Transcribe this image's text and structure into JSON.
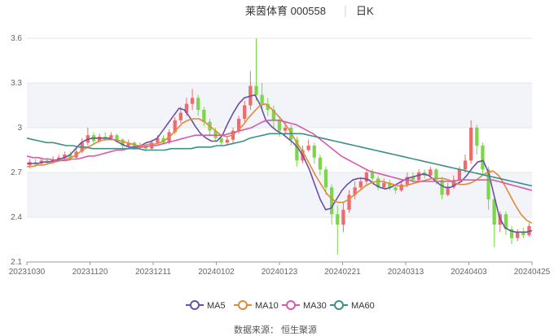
{
  "chart_data": {
    "type": "candlestick",
    "title": "莱茵体育 000558",
    "period_label": "日K",
    "ylim": [
      2.1,
      3.6
    ],
    "yticks": [
      2.1,
      2.4,
      2.7,
      3,
      3.3,
      3.6
    ],
    "ytick_labels": [
      "2.1",
      "2.4",
      "2.7",
      "3",
      "3.3",
      "3.6"
    ],
    "xtick_labels": [
      "20231030",
      "20231120",
      "20231211",
      "20240102",
      "20240123",
      "20240221",
      "20240313",
      "20240403",
      "20240425"
    ],
    "grid": true,
    "legend_position": "bottom",
    "series": [
      {
        "name": "MA5",
        "color": "#6b4fa8",
        "values": [
          2.76,
          2.76,
          2.76,
          2.77,
          2.77,
          2.78,
          2.79,
          2.8,
          2.82,
          2.86,
          2.9,
          2.92,
          2.93,
          2.93,
          2.93,
          2.93,
          2.92,
          2.9,
          2.88,
          2.87,
          2.87,
          2.88,
          2.9,
          2.91,
          2.93,
          2.98,
          3.03,
          3.08,
          3.13,
          3.12,
          3.07,
          3.01,
          2.96,
          2.93,
          2.91,
          2.91,
          2.95,
          3.03,
          3.1,
          3.16,
          3.2,
          3.21,
          3.22,
          3.15,
          3.05,
          3.01,
          2.98,
          2.96,
          2.93,
          2.9,
          2.86,
          2.8,
          2.72,
          2.62,
          2.52,
          2.45,
          2.46,
          2.52,
          2.58,
          2.62,
          2.65,
          2.66,
          2.66,
          2.65,
          2.62,
          2.6,
          2.59,
          2.6,
          2.62,
          2.64,
          2.66,
          2.67,
          2.68,
          2.69,
          2.68,
          2.65,
          2.62,
          2.6,
          2.6,
          2.62,
          2.64,
          2.68,
          2.73,
          2.77,
          2.78,
          2.7,
          2.55,
          2.4,
          2.33,
          2.31,
          2.3,
          2.3,
          2.3,
          2.31
        ]
      },
      {
        "name": "MA10",
        "color": "#e08a3a",
        "values": [
          2.74,
          2.74,
          2.75,
          2.75,
          2.76,
          2.77,
          2.78,
          2.79,
          2.8,
          2.82,
          2.85,
          2.87,
          2.89,
          2.91,
          2.92,
          2.92,
          2.92,
          2.91,
          2.9,
          2.89,
          2.88,
          2.88,
          2.89,
          2.89,
          2.9,
          2.92,
          2.95,
          2.99,
          3.03,
          3.05,
          3.06,
          3.06,
          3.04,
          3.01,
          2.98,
          2.95,
          2.94,
          2.95,
          2.98,
          3.02,
          3.07,
          3.11,
          3.15,
          3.16,
          3.13,
          3.09,
          3.05,
          3.0,
          2.94,
          2.88,
          2.82,
          2.75,
          2.68,
          2.62,
          2.56,
          2.52,
          2.5,
          2.5,
          2.52,
          2.55,
          2.58,
          2.61,
          2.63,
          2.64,
          2.64,
          2.63,
          2.62,
          2.61,
          2.61,
          2.62,
          2.63,
          2.64,
          2.65,
          2.66,
          2.66,
          2.66,
          2.65,
          2.63,
          2.62,
          2.62,
          2.63,
          2.65,
          2.68,
          2.7,
          2.71,
          2.68,
          2.62,
          2.55,
          2.48,
          2.42,
          2.38,
          2.36
        ]
      },
      {
        "name": "MA30",
        "color": "#d65ab0",
        "values": [
          2.81,
          2.8,
          2.8,
          2.79,
          2.79,
          2.78,
          2.78,
          2.78,
          2.79,
          2.79,
          2.8,
          2.81,
          2.81,
          2.82,
          2.83,
          2.84,
          2.85,
          2.85,
          2.86,
          2.86,
          2.87,
          2.87,
          2.88,
          2.88,
          2.89,
          2.9,
          2.91,
          2.92,
          2.93,
          2.94,
          2.95,
          2.95,
          2.95,
          2.95,
          2.95,
          2.95,
          2.96,
          2.97,
          2.98,
          2.99,
          3.0,
          3.02,
          3.04,
          3.05,
          3.05,
          3.05,
          3.04,
          3.03,
          3.02,
          3.0,
          2.98,
          2.96,
          2.93,
          2.9,
          2.87,
          2.84,
          2.81,
          2.79,
          2.77,
          2.75,
          2.73,
          2.71,
          2.7,
          2.69,
          2.68,
          2.67,
          2.66,
          2.65,
          2.65,
          2.64,
          2.64,
          2.64,
          2.64,
          2.64,
          2.64,
          2.64,
          2.64,
          2.65,
          2.65,
          2.65,
          2.65,
          2.65,
          2.65,
          2.65,
          2.64,
          2.63,
          2.62,
          2.61,
          2.6,
          2.59,
          2.58
        ]
      },
      {
        "name": "MA60",
        "color": "#3c8f8a",
        "values": [
          2.93,
          2.92,
          2.91,
          2.9,
          2.9,
          2.89,
          2.88,
          2.88,
          2.87,
          2.87,
          2.86,
          2.86,
          2.86,
          2.86,
          2.86,
          2.86,
          2.86,
          2.86,
          2.85,
          2.85,
          2.85,
          2.85,
          2.86,
          2.86,
          2.86,
          2.86,
          2.87,
          2.87,
          2.87,
          2.88,
          2.88,
          2.89,
          2.9,
          2.91,
          2.93,
          2.94,
          2.95,
          2.96,
          2.96,
          2.96,
          2.96,
          2.96,
          2.96,
          2.95,
          2.94,
          2.93,
          2.92,
          2.91,
          2.9,
          2.89,
          2.88,
          2.87,
          2.86,
          2.85,
          2.84,
          2.83,
          2.82,
          2.81,
          2.8,
          2.79,
          2.78,
          2.77,
          2.76,
          2.75,
          2.74,
          2.73,
          2.72,
          2.71,
          2.7,
          2.69,
          2.68,
          2.67,
          2.66,
          2.65,
          2.64,
          2.63,
          2.62,
          2.61
        ]
      }
    ],
    "candles": [
      [
        2.75,
        2.77,
        2.79,
        2.73
      ],
      [
        2.77,
        2.76,
        2.79,
        2.74
      ],
      [
        2.76,
        2.78,
        2.8,
        2.75
      ],
      [
        2.78,
        2.77,
        2.8,
        2.75
      ],
      [
        2.77,
        2.79,
        2.81,
        2.76
      ],
      [
        2.79,
        2.8,
        2.82,
        2.78
      ],
      [
        2.8,
        2.82,
        2.84,
        2.79
      ],
      [
        2.82,
        2.8,
        2.84,
        2.78
      ],
      [
        2.8,
        2.84,
        2.86,
        2.79
      ],
      [
        2.84,
        2.9,
        2.93,
        2.83
      ],
      [
        2.9,
        2.95,
        3.0,
        2.88
      ],
      [
        2.95,
        2.91,
        2.97,
        2.89
      ],
      [
        2.91,
        2.94,
        2.96,
        2.9
      ],
      [
        2.94,
        2.93,
        2.97,
        2.91
      ],
      [
        2.93,
        2.95,
        2.97,
        2.92
      ],
      [
        2.95,
        2.92,
        2.96,
        2.9
      ],
      [
        2.92,
        2.88,
        2.93,
        2.86
      ],
      [
        2.88,
        2.9,
        2.92,
        2.86
      ],
      [
        2.9,
        2.87,
        2.91,
        2.85
      ],
      [
        2.87,
        2.88,
        2.9,
        2.86
      ],
      [
        2.88,
        2.86,
        2.89,
        2.84
      ],
      [
        2.86,
        2.9,
        2.92,
        2.85
      ],
      [
        2.9,
        2.93,
        2.95,
        2.89
      ],
      [
        2.93,
        2.9,
        2.95,
        2.89
      ],
      [
        2.9,
        2.97,
        2.99,
        2.89
      ],
      [
        2.97,
        3.05,
        3.07,
        2.96
      ],
      [
        3.05,
        3.1,
        3.14,
        3.03
      ],
      [
        3.1,
        3.16,
        3.2,
        3.08
      ],
      [
        3.16,
        3.2,
        3.26,
        3.12
      ],
      [
        3.2,
        3.12,
        3.22,
        3.08
      ],
      [
        3.12,
        3.04,
        3.14,
        3.01
      ],
      [
        3.04,
        2.98,
        3.06,
        2.95
      ],
      [
        2.98,
        2.93,
        3.0,
        2.91
      ],
      [
        2.93,
        2.9,
        2.95,
        2.88
      ],
      [
        2.9,
        2.92,
        2.94,
        2.88
      ],
      [
        2.92,
        2.98,
        3.0,
        2.9
      ],
      [
        2.98,
        3.06,
        3.08,
        2.96
      ],
      [
        3.06,
        3.15,
        3.18,
        3.04
      ],
      [
        3.15,
        3.28,
        3.38,
        3.12
      ],
      [
        3.28,
        3.22,
        3.6,
        3.18
      ],
      [
        3.22,
        3.16,
        3.3,
        3.12
      ],
      [
        3.16,
        3.12,
        3.2,
        3.08
      ],
      [
        3.12,
        3.05,
        3.15,
        3.0
      ],
      [
        3.05,
        2.98,
        3.08,
        2.94
      ],
      [
        2.98,
        3.0,
        3.04,
        2.95
      ],
      [
        3.0,
        2.92,
        3.02,
        2.88
      ],
      [
        2.92,
        2.78,
        2.94,
        2.74
      ],
      [
        2.78,
        2.85,
        2.88,
        2.76
      ],
      [
        2.85,
        2.88,
        2.92,
        2.84
      ],
      [
        2.88,
        2.8,
        2.9,
        2.76
      ],
      [
        2.8,
        2.72,
        2.82,
        2.68
      ],
      [
        2.72,
        2.6,
        2.74,
        2.55
      ],
      [
        2.6,
        2.42,
        2.62,
        2.35
      ],
      [
        2.42,
        2.35,
        2.48,
        2.15
      ],
      [
        2.35,
        2.45,
        2.5,
        2.3
      ],
      [
        2.45,
        2.55,
        2.58,
        2.43
      ],
      [
        2.55,
        2.6,
        2.64,
        2.52
      ],
      [
        2.6,
        2.64,
        2.67,
        2.58
      ],
      [
        2.64,
        2.7,
        2.72,
        2.62
      ],
      [
        2.7,
        2.66,
        2.72,
        2.63
      ],
      [
        2.66,
        2.6,
        2.68,
        2.58
      ],
      [
        2.6,
        2.63,
        2.66,
        2.59
      ],
      [
        2.63,
        2.6,
        2.65,
        2.58
      ],
      [
        2.6,
        2.58,
        2.62,
        2.56
      ],
      [
        2.58,
        2.62,
        2.64,
        2.57
      ],
      [
        2.62,
        2.67,
        2.7,
        2.6
      ],
      [
        2.67,
        2.65,
        2.7,
        2.63
      ],
      [
        2.65,
        2.7,
        2.72,
        2.64
      ],
      [
        2.7,
        2.68,
        2.72,
        2.66
      ],
      [
        2.68,
        2.72,
        2.74,
        2.67
      ],
      [
        2.72,
        2.65,
        2.73,
        2.62
      ],
      [
        2.65,
        2.55,
        2.67,
        2.52
      ],
      [
        2.55,
        2.6,
        2.63,
        2.54
      ],
      [
        2.6,
        2.65,
        2.68,
        2.59
      ],
      [
        2.65,
        2.72,
        2.74,
        2.64
      ],
      [
        2.72,
        2.78,
        2.82,
        2.7
      ],
      [
        2.78,
        3.0,
        3.05,
        2.76
      ],
      [
        3.0,
        2.88,
        3.02,
        2.82
      ],
      [
        2.88,
        2.72,
        2.9,
        2.68
      ],
      [
        2.72,
        2.52,
        2.74,
        2.45
      ],
      [
        2.52,
        2.35,
        2.54,
        2.2
      ],
      [
        2.35,
        2.42,
        2.44,
        2.3
      ],
      [
        2.42,
        2.32,
        2.44,
        2.28
      ],
      [
        2.32,
        2.26,
        2.34,
        2.22
      ],
      [
        2.26,
        2.3,
        2.32,
        2.24
      ],
      [
        2.3,
        2.28,
        2.33,
        2.26
      ],
      [
        2.28,
        2.34,
        2.36,
        2.27
      ]
    ],
    "source_text": "数据来源：  恒生聚源"
  }
}
